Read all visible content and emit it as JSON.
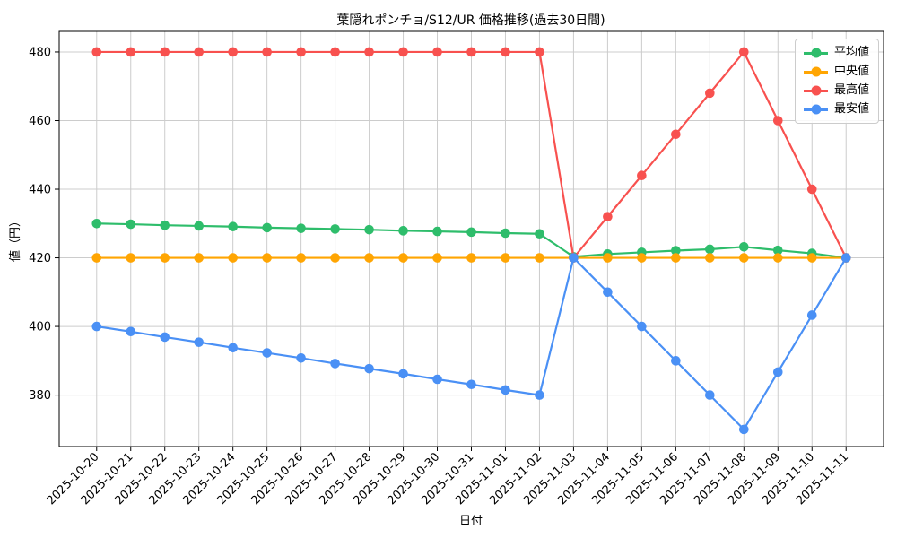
{
  "chart_data": {
    "type": "line",
    "title": "葉隠れポンチョ/S12/UR 価格推移(過去30日間)",
    "xlabel": "日付",
    "ylabel": "値（円）",
    "categories": [
      "2025-10-20",
      "2025-10-21",
      "2025-10-22",
      "2025-10-23",
      "2025-10-24",
      "2025-10-25",
      "2025-10-26",
      "2025-10-27",
      "2025-10-28",
      "2025-10-29",
      "2025-10-30",
      "2025-10-31",
      "2025-11-01",
      "2025-11-02",
      "2025-11-03",
      "2025-11-04",
      "2025-11-05",
      "2025-11-06",
      "2025-11-07",
      "2025-11-08",
      "2025-11-09",
      "2025-11-10",
      "2025-11-11"
    ],
    "series": [
      {
        "key": "avg",
        "name": "平均値",
        "color": "#2ebd6b",
        "values": [
          430.0,
          429.8,
          429.5,
          429.3,
          429.1,
          428.8,
          428.6,
          428.4,
          428.2,
          427.9,
          427.7,
          427.5,
          427.2,
          427.0,
          420.3,
          421.1,
          421.6,
          422.1,
          422.5,
          423.2,
          422.2,
          421.3,
          420.0
        ]
      },
      {
        "key": "median",
        "name": "中央値",
        "color": "#ffa502",
        "values": [
          420,
          420,
          420,
          420,
          420,
          420,
          420,
          420,
          420,
          420,
          420,
          420,
          420,
          420,
          420,
          420,
          420,
          420,
          420,
          420,
          420,
          420,
          420
        ]
      },
      {
        "key": "max",
        "name": "最高値",
        "color": "#f8514f",
        "values": [
          480,
          480,
          480,
          480,
          480,
          480,
          480,
          480,
          480,
          480,
          480,
          480,
          480,
          480,
          420,
          432,
          444,
          456,
          468,
          480,
          460,
          440,
          420
        ]
      },
      {
        "key": "min",
        "name": "最安値",
        "color": "#4a90f5",
        "values": [
          400.0,
          398.5,
          396.9,
          395.4,
          393.8,
          392.3,
          390.8,
          389.2,
          387.7,
          386.2,
          384.6,
          383.1,
          381.5,
          380.0,
          420.0,
          410.0,
          400.0,
          390.0,
          380.0,
          370.0,
          386.7,
          403.3,
          420.0
        ]
      }
    ],
    "yticks": [
      380,
      400,
      420,
      440,
      460,
      480
    ],
    "ylim": [
      365,
      486
    ],
    "grid": true,
    "grid_color": "#cccccc",
    "spine_color": "#000000",
    "legend_position": "upper right",
    "background": "#ffffff"
  }
}
